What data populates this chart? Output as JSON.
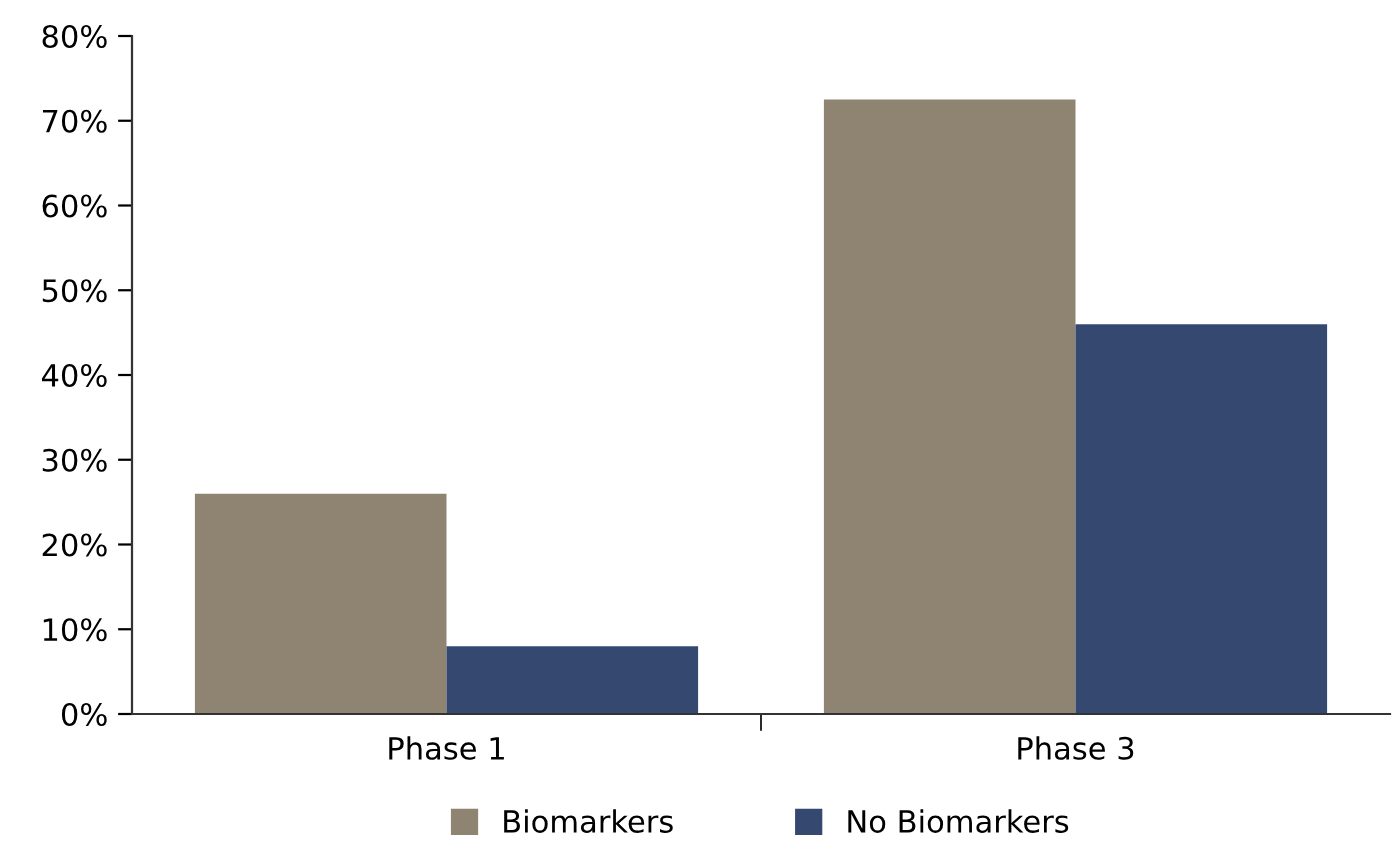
{
  "chart_data": {
    "type": "bar",
    "categories": [
      "Phase 1",
      "Phase 3"
    ],
    "series": [
      {
        "name": "Biomarkers",
        "color": "#8f8472",
        "values": [
          26,
          72.5
        ]
      },
      {
        "name": "No Biomarkers",
        "color": "#344870",
        "values": [
          8,
          46
        ]
      }
    ],
    "ylim": [
      0,
      80
    ],
    "yticks": [
      {
        "value": 0,
        "label": "0%"
      },
      {
        "value": 10,
        "label": "10%"
      },
      {
        "value": 20,
        "label": "20%"
      },
      {
        "value": 30,
        "label": "30%"
      },
      {
        "value": 40,
        "label": "40%"
      },
      {
        "value": 50,
        "label": "50%"
      },
      {
        "value": 60,
        "label": "60%"
      },
      {
        "value": 70,
        "label": "70%"
      },
      {
        "value": 80,
        "label": "80%"
      }
    ],
    "grid": false,
    "legend": "bottom"
  }
}
